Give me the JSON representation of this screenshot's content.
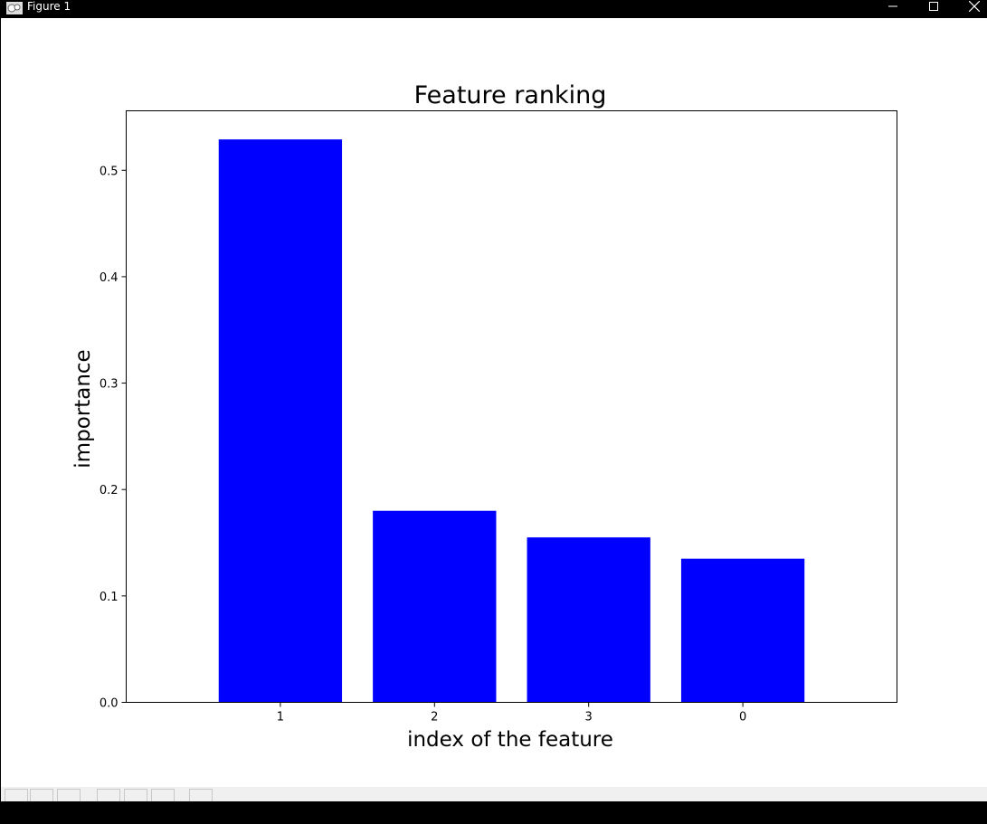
{
  "window": {
    "title": "Figure 1",
    "icon": "matplotlib-figure-icon"
  },
  "toolbar": {
    "buttons": [
      "home-icon",
      "back-arrow-icon",
      "forward-arrow-icon",
      "pan-icon",
      "zoom-icon",
      "configure-subplots-icon",
      "save-icon"
    ]
  },
  "chart_data": {
    "type": "bar",
    "title": "Feature ranking",
    "xlabel": "index of the feature",
    "ylabel": "importance",
    "categories": [
      "1",
      "2",
      "3",
      "0"
    ],
    "values": [
      0.529,
      0.18,
      0.155,
      0.135
    ],
    "ylim": [
      0,
      0.5559
    ],
    "yticks": [
      "0.0",
      "0.1",
      "0.2",
      "0.3",
      "0.4",
      "0.5"
    ],
    "bar_color": "#0000ff",
    "grid": false,
    "legend": "none"
  }
}
